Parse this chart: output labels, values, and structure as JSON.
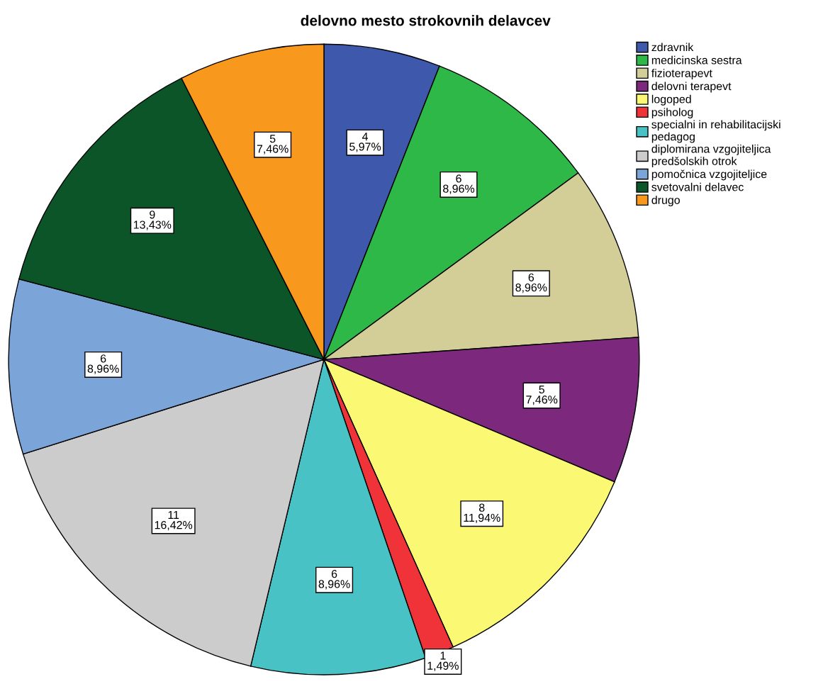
{
  "chart_data": {
    "type": "pie",
    "title": "delovno mesto strokovnih delavcev",
    "categories": [
      "zdravnik",
      "medicinska sestra",
      "fizioterapevt",
      "delovni terapevt",
      "logoped",
      "psiholog",
      "specialni in rehabilitacijski\npedagog",
      "diplomirana vzgojiteljica\npredšolskih otrok",
      "pomočnica vzgojiteljice",
      "svetovalni delavec",
      "drugo"
    ],
    "values": [
      4,
      6,
      6,
      5,
      8,
      1,
      6,
      11,
      6,
      9,
      5
    ],
    "value_labels": [
      "4\n5,97%",
      "6\n8,96%",
      "6\n8,96%",
      "5\n7,46%",
      "8\n11,94%",
      "1\n1,49%",
      "6\n8,96%",
      "11\n16,42%",
      "6\n8,96%",
      "9\n13,43%",
      "5\n7,46%"
    ],
    "colors": [
      "#3e58ac",
      "#2eb848",
      "#d3ce97",
      "#7c287d",
      "#fbf873",
      "#ef3338",
      "#48c2c5",
      "#cccccc",
      "#7ba4d9",
      "#0b5529",
      "#f8981d"
    ],
    "legend": "top right"
  }
}
